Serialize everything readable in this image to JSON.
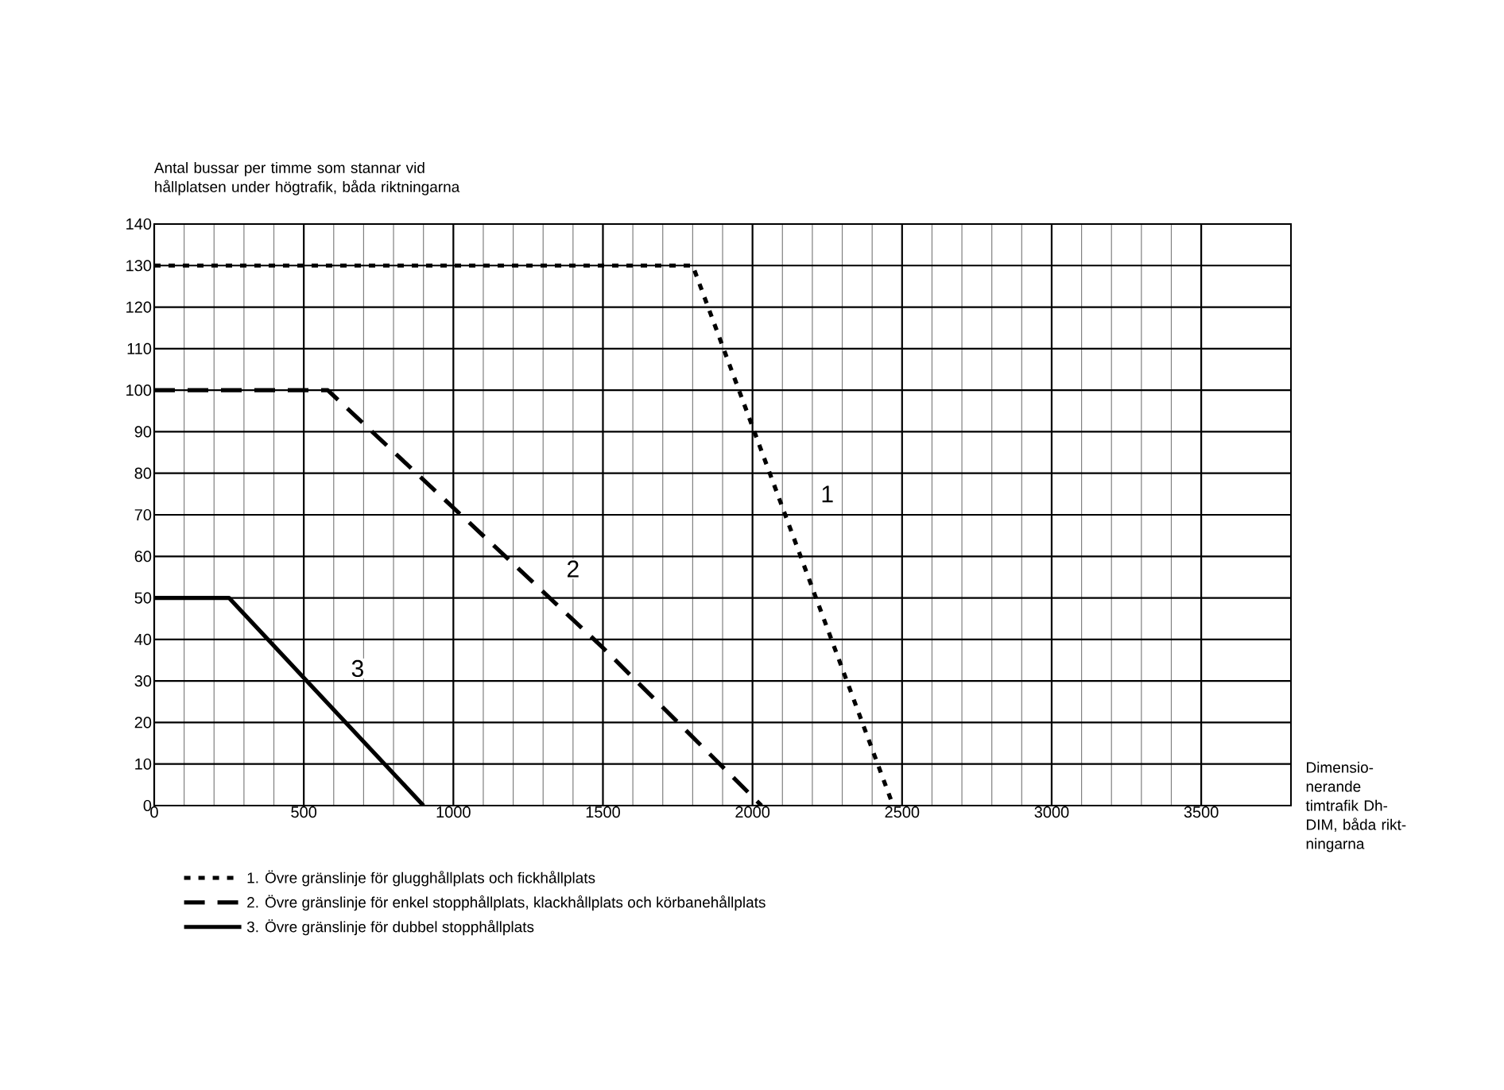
{
  "chart_data": {
    "type": "line",
    "ylabel": "Antal bussar per timme som stannar vid hållplatsen under högtrafik, båda riktningarna",
    "xlabel": "Dimensio-nerande timtrafik Dh-DIM, båda rikt-ningarna",
    "xlim": [
      0,
      3800
    ],
    "xticks": [
      0,
      500,
      1000,
      1500,
      2000,
      2500,
      3000,
      3500
    ],
    "ylim": [
      0,
      140
    ],
    "yticks": [
      0,
      10,
      20,
      30,
      40,
      50,
      60,
      70,
      80,
      90,
      100,
      110,
      120,
      130,
      140
    ],
    "grid": true,
    "legend": "bottom",
    "series": [
      {
        "name": "1. Övre gränslinje för glugghållplats och fickhållplats",
        "color": "#000000",
        "line_style": "dotted",
        "x": [
          0,
          1800,
          2470
        ],
        "values": [
          130,
          130,
          0
        ]
      },
      {
        "name": "2. Övre gränslinje för enkel stopphållplats, klackhållplats och körbanehållplats",
        "color": "#000000",
        "line_style": "dashed",
        "x": [
          0,
          580,
          1500,
          2030
        ],
        "values": [
          100,
          100,
          38,
          0
        ]
      },
      {
        "name": "3. Övre gränslinje för dubbel stopphållplats",
        "color": "#000000",
        "line_style": "solid",
        "x": [
          0,
          250,
          900
        ],
        "values": [
          50,
          50,
          0
        ]
      }
    ],
    "annotations": [
      {
        "text": "1",
        "x": 2250,
        "y": 75
      },
      {
        "text": "2",
        "x": 1400,
        "y": 57
      },
      {
        "text": "3",
        "x": 680,
        "y": 33
      }
    ]
  }
}
